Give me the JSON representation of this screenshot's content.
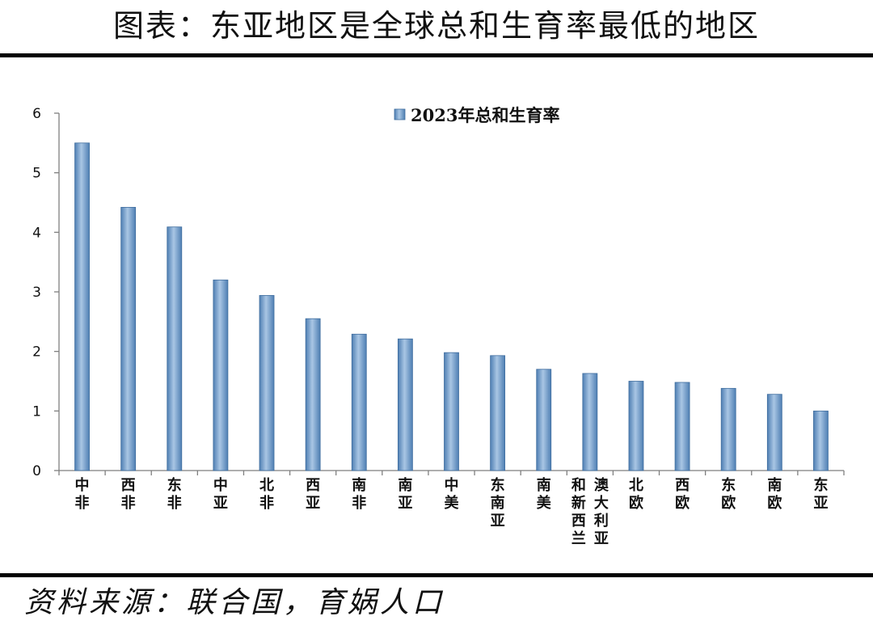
{
  "header": {
    "title": "图表：东亚地区是全球总和生育率最低的地区"
  },
  "footer": {
    "source": "资料来源：联合国，育娲人口"
  },
  "colors": {
    "bar_fill": "#6f9bc6",
    "bar_edge": "#3f6d9e",
    "axis": "#7f7f7f"
  },
  "chart_data": {
    "type": "bar",
    "title": "",
    "xlabel": "",
    "ylabel": "",
    "ylim": [
      0,
      6
    ],
    "yticks": [
      0,
      1,
      2,
      3,
      4,
      5,
      6
    ],
    "grid": false,
    "legend_position": "top-center",
    "categories": [
      "中非",
      "西非",
      "东非",
      "中亚",
      "北非",
      "西亚",
      "南非",
      "南亚",
      "中美",
      "东南亚",
      "南美",
      "澳大利亚和新西兰",
      "北欧",
      "西欧",
      "东欧",
      "南欧",
      "东亚"
    ],
    "category_label_columns": [
      [
        "中非"
      ],
      [
        "西非"
      ],
      [
        "东非"
      ],
      [
        "中亚"
      ],
      [
        "北非"
      ],
      [
        "西亚"
      ],
      [
        "南非"
      ],
      [
        "南亚"
      ],
      [
        "中美"
      ],
      [
        "东南亚"
      ],
      [
        "南美"
      ],
      [
        "和新西兰",
        "澳大利亚"
      ],
      [
        "北欧"
      ],
      [
        "西欧"
      ],
      [
        "东欧"
      ],
      [
        "南欧"
      ],
      [
        "东亚"
      ]
    ],
    "series": [
      {
        "name": "2023年总和生育率",
        "values": [
          5.5,
          4.42,
          4.09,
          3.2,
          2.94,
          2.55,
          2.29,
          2.21,
          1.98,
          1.93,
          1.7,
          1.63,
          1.5,
          1.48,
          1.38,
          1.28,
          1.0
        ]
      }
    ]
  }
}
